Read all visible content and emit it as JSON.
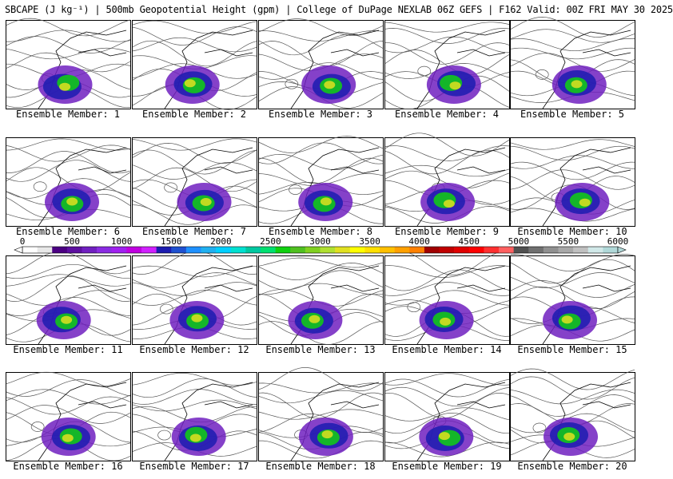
{
  "header": "SBCAPE (J kg⁻¹) | 500mb Geopotential Height (gpm) | College of DuPage NEXLAB 06Z GEFS | F162 Valid: 00Z FRI MAY 30 2025",
  "colorbar": {
    "ticks": [
      "0",
      "500",
      "1000",
      "1500",
      "2000",
      "2500",
      "3000",
      "3500",
      "4000",
      "4500",
      "5000",
      "5500",
      "6000"
    ],
    "colors": [
      "#ffffff",
      "#e8e8e8",
      "#4b0082",
      "#5d10a0",
      "#7020c0",
      "#8a2be2",
      "#a020f0",
      "#c000e0",
      "#d020ff",
      "#1c1cb0",
      "#1e50d0",
      "#1e90ff",
      "#20b0f0",
      "#00cfff",
      "#00e0d0",
      "#00c8a0",
      "#00e070",
      "#10d010",
      "#50c020",
      "#80d020",
      "#b0e030",
      "#e0e020",
      "#ffff00",
      "#ffe000",
      "#ffc000",
      "#ffa000",
      "#ff8000",
      "#a00000",
      "#c00000",
      "#e00000",
      "#ff0000",
      "#ff3030",
      "#ff6060",
      "#505050",
      "#707070",
      "#909090",
      "#a8a8a8",
      "#c0c0c0",
      "#d0e8e8",
      "#b0d8d8"
    ]
  },
  "members": [
    {
      "label": "Ensemble Member: 1"
    },
    {
      "label": "Ensemble Member: 2"
    },
    {
      "label": "Ensemble Member: 3"
    },
    {
      "label": "Ensemble Member: 4"
    },
    {
      "label": "Ensemble Member: 5"
    },
    {
      "label": "Ensemble Member: 6"
    },
    {
      "label": "Ensemble Member: 7"
    },
    {
      "label": "Ensemble Member: 8"
    },
    {
      "label": "Ensemble Member: 9"
    },
    {
      "label": "Ensemble Member: 10"
    },
    {
      "label": "Ensemble Member: 11"
    },
    {
      "label": "Ensemble Member: 12"
    },
    {
      "label": "Ensemble Member: 13"
    },
    {
      "label": "Ensemble Member: 14"
    },
    {
      "label": "Ensemble Member: 15"
    },
    {
      "label": "Ensemble Member: 16"
    },
    {
      "label": "Ensemble Member: 17"
    },
    {
      "label": "Ensemble Member: 18"
    },
    {
      "label": "Ensemble Member: 19"
    },
    {
      "label": "Ensemble Member: 20"
    }
  ]
}
